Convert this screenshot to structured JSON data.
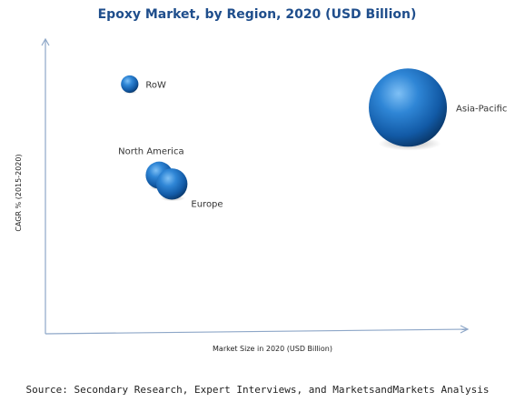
{
  "chart_data": {
    "type": "scatter",
    "title": "Epoxy Market, by Region, 2020 (USD Billion)",
    "xlabel": "Market Size in 2020 (USD Billion)",
    "ylabel": "CAGR % (2015-2020)",
    "xlim": [
      0,
      100
    ],
    "ylim": [
      0,
      100
    ],
    "grid": false,
    "legend": "none",
    "points": [
      {
        "label": "Asia-Pacific",
        "x": 86,
        "y": 77,
        "size": 100
      },
      {
        "label": "RoW",
        "x": 20,
        "y": 85,
        "size": 5
      },
      {
        "label": "North America",
        "x": 27,
        "y": 54,
        "size": 12
      },
      {
        "label": "Europe",
        "x": 30,
        "y": 51,
        "size": 16
      }
    ]
  },
  "source": "Source: Secondary Research, Expert Interviews, and MarketsandMarkets Analysis",
  "colors": {
    "bubble_light": "#5aa8ea",
    "bubble_mid": "#1f6fc0",
    "bubble_dark": "#0c3f7a",
    "axis": "#8ea7c8",
    "title": "#1f4e8c"
  }
}
